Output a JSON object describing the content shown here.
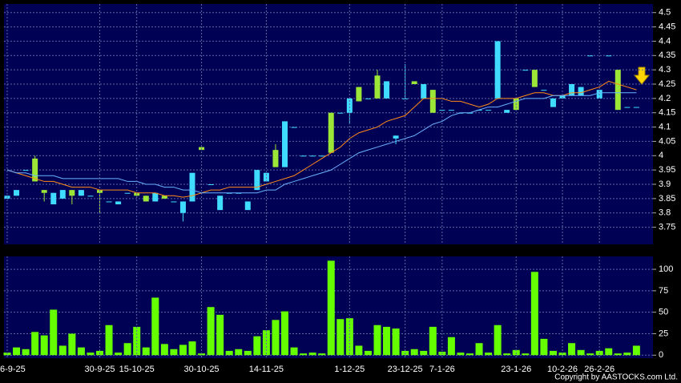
{
  "chart_data": [
    {
      "type": "candlestick",
      "up_color": "#3fdcff",
      "down_color": "#9be636",
      "open": [
        3.85,
        3.86,
        3.95,
        3.99,
        3.88,
        3.83,
        3.85,
        3.88,
        3.86,
        3.86,
        3.88,
        3.84,
        3.83,
        3.87,
        3.87,
        3.86,
        3.84,
        3.86,
        3.84,
        3.8,
        3.84,
        4.03,
        3.9,
        3.81,
        3.87,
        3.87,
        3.81,
        3.88,
        3.91,
        4.02,
        3.96,
        4.1,
        4,
        4,
        4,
        4.15,
        4.15,
        4.15,
        4.24,
        4.2,
        4.28,
        4.2,
        4.06,
        4.2,
        4.26,
        4.2,
        4.23,
        4.16,
        4.16,
        4.15,
        4.15,
        4.16,
        4.16,
        4.2,
        4.15,
        4.2,
        4.3,
        4.3,
        4.23,
        4.17,
        4.2,
        4.21,
        4.21,
        4.35,
        4.2,
        4.35,
        4.3,
        4.17,
        4.17
      ],
      "high": [
        3.86,
        3.88,
        3.95,
        4,
        3.88,
        3.87,
        3.88,
        3.88,
        3.88,
        3.86,
        3.88,
        3.84,
        3.84,
        3.87,
        3.87,
        3.86,
        3.87,
        3.86,
        3.84,
        3.84,
        3.94,
        4.03,
        3.9,
        3.86,
        3.87,
        3.87,
        3.84,
        3.95,
        3.94,
        4.04,
        4.12,
        4.1,
        4,
        4,
        4,
        4.15,
        4.15,
        4.2,
        4.24,
        4.2,
        4.3,
        4.26,
        4.07,
        4.32,
        4.26,
        4.25,
        4.23,
        4.16,
        4.16,
        4.15,
        4.15,
        4.16,
        4.16,
        4.4,
        4.16,
        4.2,
        4.3,
        4.3,
        4.23,
        4.2,
        4.21,
        4.25,
        4.24,
        4.35,
        4.23,
        4.35,
        4.3,
        4.17,
        4.17
      ],
      "low": [
        3.85,
        3.86,
        3.95,
        3.91,
        3.84,
        3.83,
        3.85,
        3.83,
        3.86,
        3.86,
        3.8,
        3.84,
        3.83,
        3.87,
        3.86,
        3.84,
        3.84,
        3.85,
        3.84,
        3.77,
        3.84,
        4.02,
        3.9,
        3.81,
        3.87,
        3.87,
        3.81,
        3.88,
        3.91,
        3.96,
        3.96,
        4.1,
        4,
        4,
        4,
        4.01,
        4.15,
        4.11,
        4.19,
        4.2,
        4.2,
        4.2,
        4.04,
        4.2,
        4.25,
        4.2,
        4.15,
        4.16,
        4.16,
        4.15,
        4.15,
        4.16,
        4.16,
        4.2,
        4.15,
        4.16,
        4.3,
        4.24,
        4.23,
        4.17,
        4.2,
        4.21,
        4.21,
        4.35,
        4.2,
        4.35,
        4.16,
        4.17,
        4.17
      ],
      "close": [
        3.86,
        3.88,
        3.95,
        3.91,
        3.87,
        3.87,
        3.88,
        3.86,
        3.88,
        3.86,
        3.87,
        3.84,
        3.84,
        3.87,
        3.86,
        3.84,
        3.87,
        3.85,
        3.84,
        3.84,
        3.94,
        4.02,
        3.9,
        3.86,
        3.87,
        3.87,
        3.84,
        3.95,
        3.94,
        3.96,
        4.12,
        4.1,
        4,
        4,
        4,
        4.01,
        4.15,
        4.2,
        4.19,
        4.2,
        4.2,
        4.26,
        4.07,
        4.2,
        4.25,
        4.25,
        4.15,
        4.16,
        4.16,
        4.15,
        4.15,
        4.16,
        4.16,
        4.4,
        4.16,
        4.16,
        4.3,
        4.24,
        4.23,
        4.2,
        4.21,
        4.25,
        4.24,
        4.35,
        4.23,
        4.35,
        4.16,
        4.17,
        4.17
      ],
      "series": [
        {
          "color": "#ff8c1a",
          "values": [
            3.95,
            3.94,
            3.93,
            3.92,
            3.91,
            3.91,
            3.9,
            3.89,
            3.89,
            3.89,
            3.88,
            3.88,
            3.88,
            3.88,
            3.87,
            3.87,
            3.87,
            3.86,
            3.86,
            3.855,
            3.86,
            3.87,
            3.88,
            3.88,
            3.89,
            3.89,
            3.89,
            3.89,
            3.9,
            3.91,
            3.92,
            3.93,
            3.95,
            3.97,
            3.99,
            4.01,
            4.03,
            4.06,
            4.08,
            4.09,
            4.1,
            4.12,
            4.13,
            4.14,
            4.17,
            4.2,
            4.2,
            4.2,
            4.19,
            4.19,
            4.18,
            4.17,
            4.18,
            4.2,
            4.2,
            4.2,
            4.21,
            4.22,
            4.22,
            4.21,
            4.21,
            4.22,
            4.22,
            4.23,
            4.24,
            4.26,
            4.25,
            4.24,
            4.23
          ]
        },
        {
          "color": "#6ab4ff",
          "values": [
            3.95,
            3.94,
            3.94,
            3.93,
            3.93,
            3.93,
            3.92,
            3.92,
            3.92,
            3.92,
            3.92,
            3.92,
            3.92,
            3.91,
            3.91,
            3.9,
            3.9,
            3.89,
            3.89,
            3.88,
            3.88,
            3.87,
            3.87,
            3.87,
            3.87,
            3.87,
            3.87,
            3.87,
            3.88,
            3.88,
            3.9,
            3.91,
            3.92,
            3.93,
            3.94,
            3.95,
            3.97,
            3.99,
            4.01,
            4.02,
            4.03,
            4.04,
            4.05,
            4.06,
            4.07,
            4.09,
            4.11,
            4.12,
            4.14,
            4.15,
            4.15,
            4.16,
            4.17,
            4.17,
            4.18,
            4.19,
            4.2,
            4.2,
            4.2,
            4.21,
            4.21,
            4.21,
            4.21,
            4.21,
            4.22,
            4.22,
            4.22,
            4.22,
            4.22
          ]
        }
      ],
      "ylim": [
        3.69,
        4.53
      ],
      "yticks": [
        3.75,
        3.8,
        3.85,
        3.9,
        3.95,
        4,
        4.05,
        4.1,
        4.15,
        4.2,
        4.25,
        4.3,
        4.35,
        4.4,
        4.45,
        4.5
      ],
      "grid": true
    },
    {
      "type": "bar",
      "color": "#66ff00",
      "categories": [
        "6-9-25",
        null,
        null,
        null,
        null,
        null,
        null,
        null,
        null,
        null,
        "30-9-25",
        null,
        null,
        null,
        "15-10-25",
        null,
        null,
        null,
        null,
        null,
        null,
        "30-10-25",
        null,
        null,
        null,
        null,
        null,
        null,
        "14-11-25",
        null,
        null,
        null,
        null,
        null,
        null,
        null,
        null,
        "1-12-25",
        null,
        null,
        null,
        null,
        null,
        "23-12-25",
        null,
        null,
        null,
        "7-1-26",
        null,
        null,
        null,
        null,
        null,
        null,
        null,
        "23-1-26",
        null,
        null,
        null,
        null,
        "10-2-26",
        null,
        null,
        null,
        "26-2-26",
        null,
        null,
        null,
        null
      ],
      "values": [
        3,
        9,
        7,
        27,
        23,
        53,
        11,
        25,
        9,
        3,
        5,
        35,
        3,
        14,
        33,
        9,
        67,
        13,
        7,
        12,
        16,
        2,
        56,
        47,
        5,
        7,
        5,
        22,
        29,
        41,
        51,
        9,
        2,
        3,
        2,
        110,
        42,
        43,
        11,
        5,
        35,
        33,
        31,
        5,
        7,
        5,
        33,
        4,
        21,
        3,
        2,
        14,
        3,
        35,
        2,
        6,
        2,
        97,
        19,
        5,
        3,
        14,
        6,
        2,
        5,
        8,
        2,
        3,
        11
      ],
      "ylim": [
        -3.5,
        115
      ],
      "yticks": [
        0,
        25,
        50,
        75,
        100
      ],
      "grid": true,
      "footnote": "Copyright by AASTOCKS.com Ltd."
    }
  ]
}
